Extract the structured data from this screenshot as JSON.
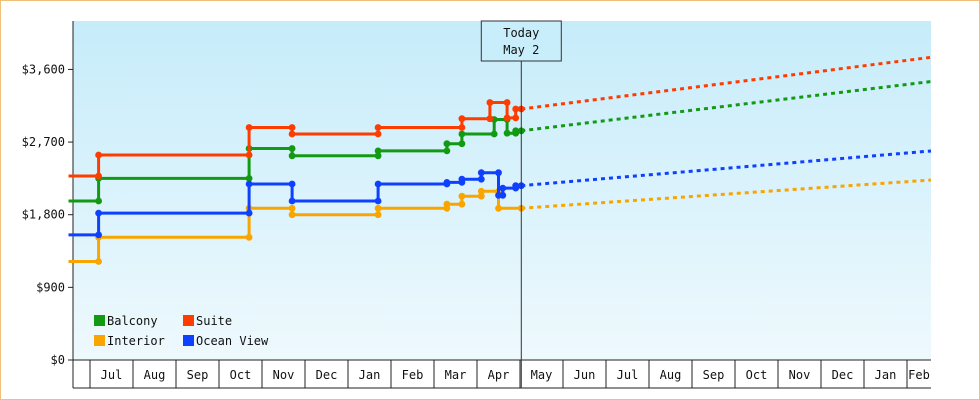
{
  "chart_data": {
    "type": "line",
    "title": "",
    "xlabel": "",
    "ylabel": "",
    "y_ticks": [
      "$0",
      "$900",
      "$1,800",
      "$2,700",
      "$3,600"
    ],
    "y_tick_values": [
      0,
      900,
      1800,
      2700,
      3600
    ],
    "ylim": [
      0,
      4200
    ],
    "x_months": [
      "Jul",
      "Aug",
      "Sep",
      "Oct",
      "Nov",
      "Dec",
      "Jan",
      "Feb",
      "Mar",
      "Apr",
      "May",
      "Jun",
      "Jul",
      "Aug",
      "Sep",
      "Oct",
      "Nov",
      "Dec",
      "Jan",
      "Feb"
    ],
    "x_range_months": [
      0,
      20
    ],
    "today_marker": {
      "line1": "Today",
      "line2": "May 2",
      "x": 10.03
    },
    "background": "gradient",
    "legend": {
      "position": "bottom-left"
    },
    "series": [
      {
        "name": "Balcony",
        "color": "#129a12",
        "history": [
          [
            -0.5,
            1970
          ],
          [
            0.2,
            1970
          ],
          [
            0.2,
            2250
          ],
          [
            3.7,
            2250
          ],
          [
            3.7,
            2620
          ],
          [
            4.7,
            2620
          ],
          [
            4.7,
            2530
          ],
          [
            6.7,
            2530
          ],
          [
            6.7,
            2590
          ],
          [
            8.3,
            2590
          ],
          [
            8.3,
            2680
          ],
          [
            8.65,
            2680
          ],
          [
            8.65,
            2800
          ],
          [
            9.4,
            2800
          ],
          [
            9.4,
            2980
          ],
          [
            9.7,
            2980
          ],
          [
            9.7,
            2810
          ],
          [
            9.9,
            2810
          ],
          [
            9.9,
            2840
          ],
          [
            10.03,
            2840
          ]
        ],
        "forecast": [
          [
            10.03,
            2840
          ],
          [
            20,
            3450
          ]
        ]
      },
      {
        "name": "Suite",
        "color": "#ff3c00",
        "history": [
          [
            -0.5,
            2280
          ],
          [
            0.2,
            2280
          ],
          [
            0.2,
            2540
          ],
          [
            3.7,
            2540
          ],
          [
            3.7,
            2880
          ],
          [
            4.7,
            2880
          ],
          [
            4.7,
            2800
          ],
          [
            6.7,
            2800
          ],
          [
            6.7,
            2880
          ],
          [
            8.65,
            2880
          ],
          [
            8.65,
            2990
          ],
          [
            9.3,
            2990
          ],
          [
            9.3,
            3190
          ],
          [
            9.7,
            3190
          ],
          [
            9.7,
            3000
          ],
          [
            9.9,
            3000
          ],
          [
            9.9,
            3110
          ],
          [
            10.03,
            3110
          ]
        ],
        "forecast": [
          [
            10.03,
            3110
          ],
          [
            20,
            3750
          ]
        ]
      },
      {
        "name": "Interior",
        "color": "#f9a500",
        "history": [
          [
            -0.5,
            1220
          ],
          [
            0.2,
            1220
          ],
          [
            0.2,
            1520
          ],
          [
            3.7,
            1520
          ],
          [
            3.7,
            1880
          ],
          [
            4.7,
            1880
          ],
          [
            4.7,
            1800
          ],
          [
            6.7,
            1800
          ],
          [
            6.7,
            1880
          ],
          [
            8.3,
            1880
          ],
          [
            8.3,
            1930
          ],
          [
            8.65,
            1930
          ],
          [
            8.65,
            2030
          ],
          [
            9.1,
            2030
          ],
          [
            9.1,
            2090
          ],
          [
            9.5,
            2090
          ],
          [
            9.5,
            1880
          ],
          [
            10.03,
            1880
          ]
        ],
        "forecast": [
          [
            10.03,
            1880
          ],
          [
            20,
            2230
          ]
        ]
      },
      {
        "name": "Ocean View",
        "color": "#1040ff",
        "history": [
          [
            -0.5,
            1550
          ],
          [
            0.2,
            1550
          ],
          [
            0.2,
            1820
          ],
          [
            3.7,
            1820
          ],
          [
            3.7,
            2180
          ],
          [
            4.7,
            2180
          ],
          [
            4.7,
            1970
          ],
          [
            6.7,
            1970
          ],
          [
            6.7,
            2180
          ],
          [
            8.3,
            2180
          ],
          [
            8.3,
            2200
          ],
          [
            8.65,
            2200
          ],
          [
            8.65,
            2240
          ],
          [
            9.1,
            2240
          ],
          [
            9.1,
            2320
          ],
          [
            9.5,
            2320
          ],
          [
            9.5,
            2040
          ],
          [
            9.6,
            2040
          ],
          [
            9.6,
            2130
          ],
          [
            9.9,
            2130
          ],
          [
            9.9,
            2160
          ],
          [
            10.03,
            2160
          ]
        ],
        "forecast": [
          [
            10.03,
            2160
          ],
          [
            20,
            2590
          ]
        ]
      }
    ]
  }
}
